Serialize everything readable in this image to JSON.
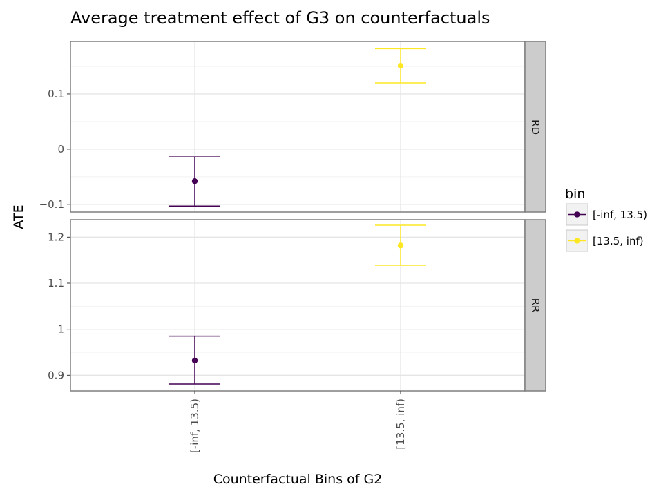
{
  "chart_data": {
    "type": "errorbar",
    "title": "Average treatment effect of G3 on counterfactuals",
    "xlabel": "Counterfactual Bins of G2",
    "ylabel": "ATE",
    "categories": [
      "[-inf, 13.5)",
      "[13.5, inf)"
    ],
    "facets": [
      {
        "label": "RD",
        "ylim": [
          -0.114,
          0.195
        ],
        "ticks": [
          -0.1,
          0,
          0.1
        ],
        "tick_labels": [
          "−0.1",
          "0",
          "0.1"
        ],
        "points": [
          {
            "category": "[-inf, 13.5)",
            "value": -0.058,
            "lower": -0.103,
            "upper": -0.014
          },
          {
            "category": "[13.5, inf)",
            "value": 0.151,
            "lower": 0.12,
            "upper": 0.182
          }
        ]
      },
      {
        "label": "RR",
        "ylim": [
          0.866,
          1.238
        ],
        "ticks": [
          0.9,
          1.0,
          1.1,
          1.2
        ],
        "tick_labels": [
          "0.9",
          "1",
          "1.1",
          "1.2"
        ],
        "points": [
          {
            "category": "[-inf, 13.5)",
            "value": 0.932,
            "lower": 0.881,
            "upper": 0.985
          },
          {
            "category": "[13.5, inf)",
            "value": 1.182,
            "lower": 1.139,
            "upper": 1.226
          }
        ]
      }
    ],
    "legend": {
      "title": "bin",
      "position": "right",
      "entries": [
        {
          "label": "[-inf, 13.5)",
          "color": "#440154"
        },
        {
          "label": "[13.5, inf)",
          "color": "#fde725"
        }
      ]
    },
    "grid": true
  }
}
